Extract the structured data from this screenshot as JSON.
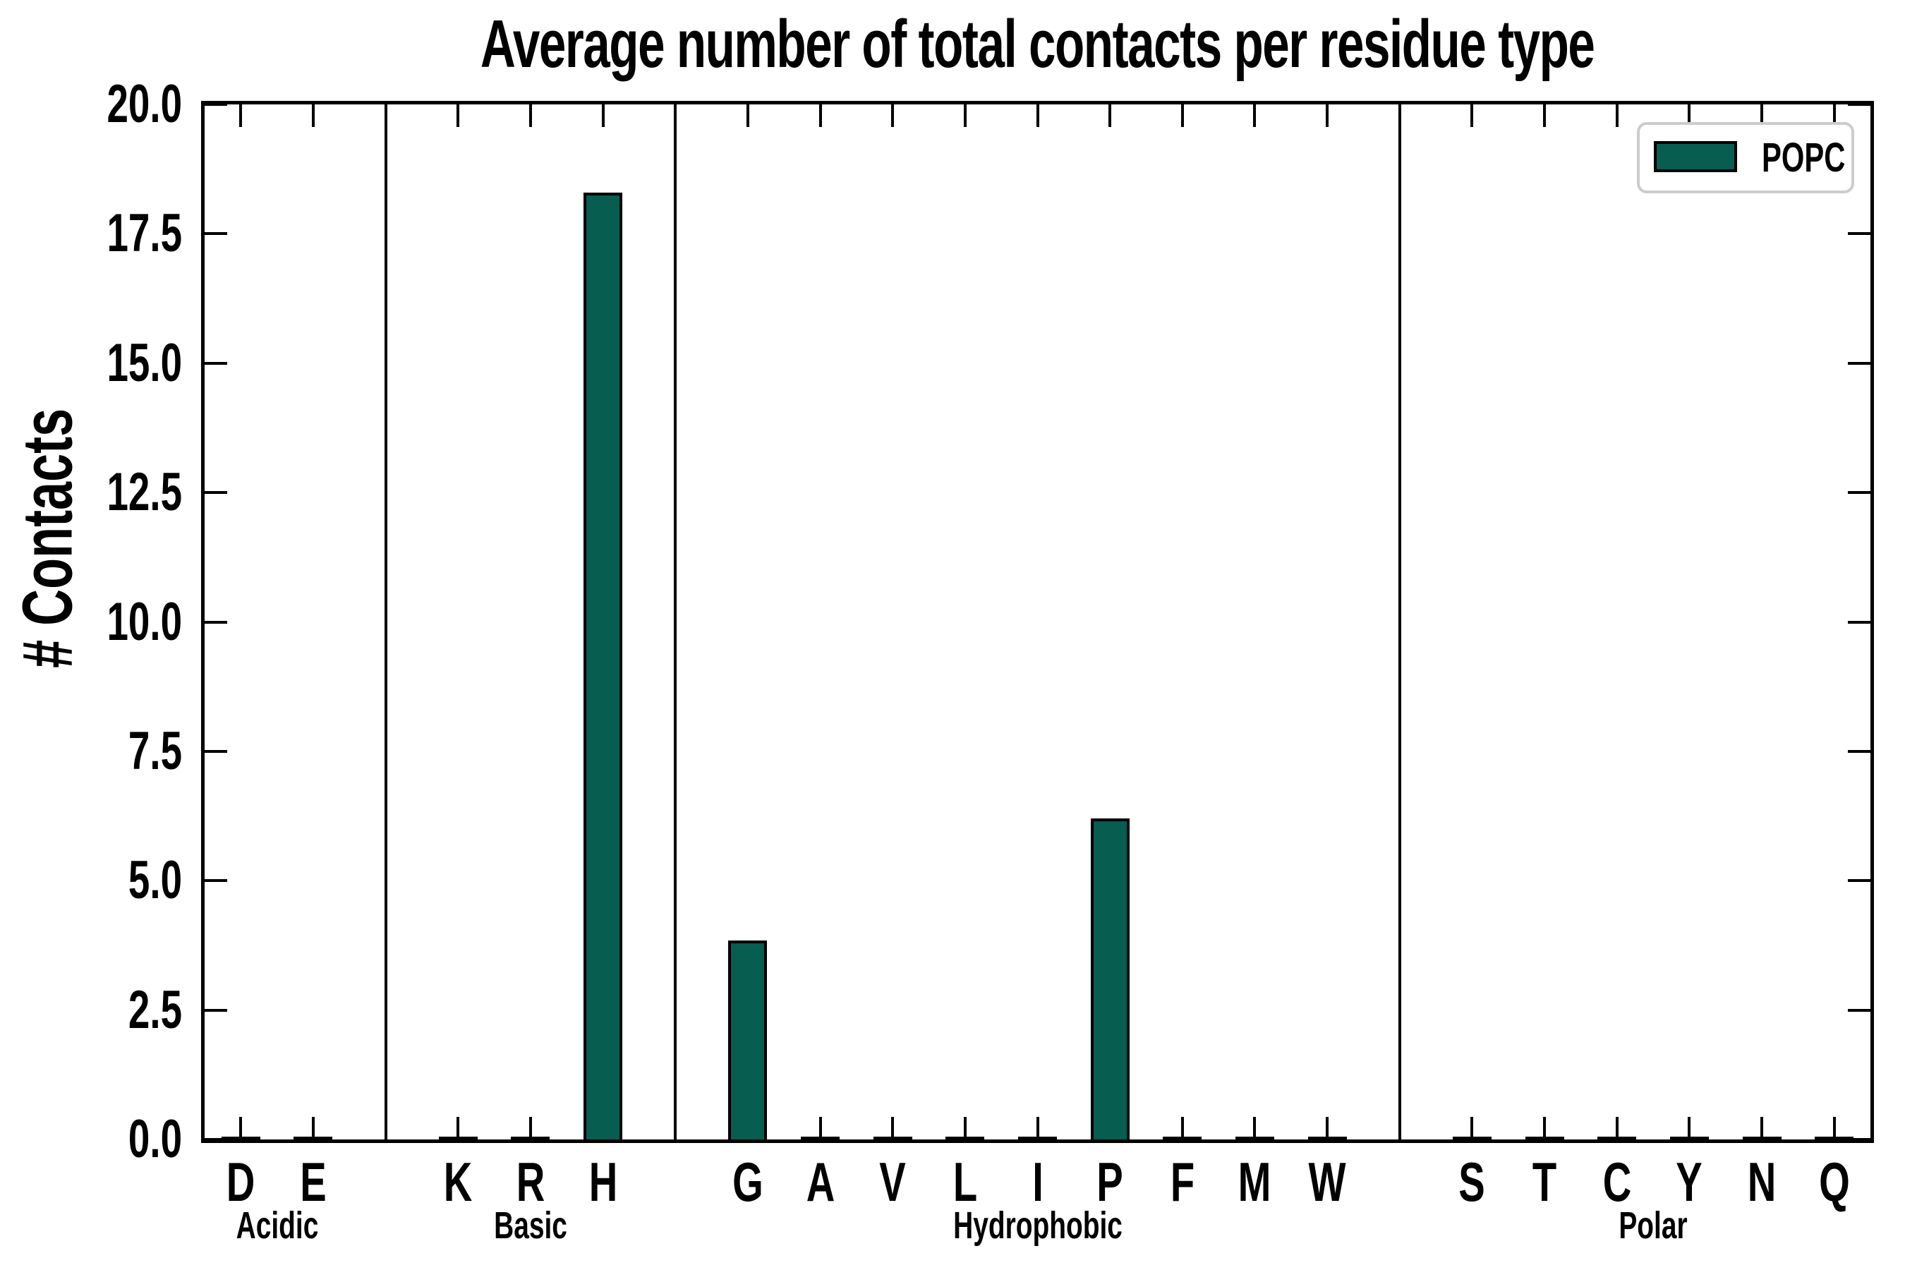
{
  "title": "Average number of total contacts per residue type",
  "ylabel": "# Contacts",
  "legend": {
    "label": "POPC"
  },
  "colors": {
    "bar_fill": "#065d50",
    "bar_edge": "#000000",
    "axis": "#000000",
    "legend_border": "#cccccc"
  },
  "chart_data": {
    "type": "bar",
    "title": "Average number of total contacts per residue type",
    "xlabel": "",
    "ylabel": "# Contacts",
    "ylim": [
      0,
      20
    ],
    "ytick_labels": [
      "0.0",
      "2.5",
      "5.0",
      "7.5",
      "10.0",
      "12.5",
      "15.0",
      "17.5",
      "20.0"
    ],
    "legend_entries": [
      "POPC"
    ],
    "legend_position": "upper right",
    "grid": false,
    "series_name": "POPC",
    "bar_color": "#065d50",
    "groups": [
      {
        "label": "Acidic",
        "categories": [
          "D",
          "E"
        ],
        "values": [
          0.03,
          0.03
        ]
      },
      {
        "label": "Basic",
        "categories": [
          "K",
          "R",
          "H"
        ],
        "values": [
          0.04,
          0.04,
          18.3
        ]
      },
      {
        "label": "Hydrophobic",
        "categories": [
          "G",
          "A",
          "V",
          "L",
          "I",
          "P",
          "F",
          "M",
          "W"
        ],
        "values": [
          3.85,
          0.03,
          0.03,
          0.04,
          0.03,
          6.2,
          0.05,
          0.03,
          0.03
        ]
      },
      {
        "label": "Polar",
        "categories": [
          "S",
          "T",
          "C",
          "Y",
          "N",
          "Q"
        ],
        "values": [
          0.04,
          0.03,
          0.03,
          0.05,
          0.03,
          0.03
        ]
      }
    ]
  }
}
